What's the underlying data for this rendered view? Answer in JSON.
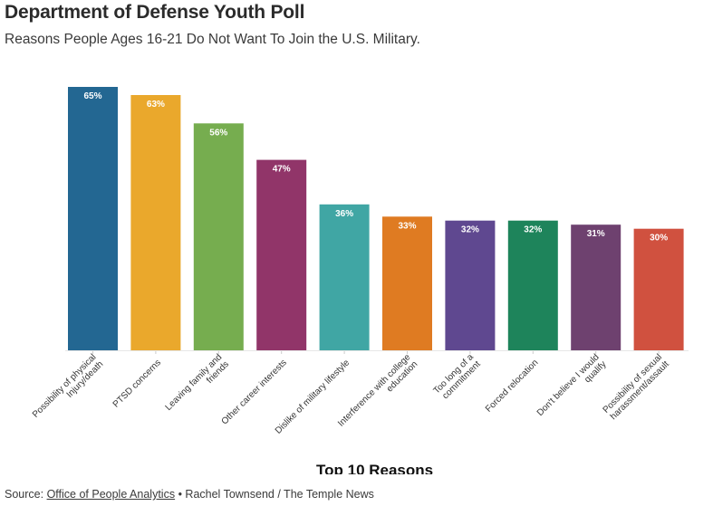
{
  "header": {
    "title": "Department of Defense Youth Poll",
    "subtitle": "Reasons People Ages 16-21 Do Not Want To Join the U.S. Military."
  },
  "footer": {
    "source_prefix": "Source: ",
    "source_link": "Office of People Analytics",
    "separator": " • ",
    "credit": "Rachel Townsend / The Temple News"
  },
  "chart_data": {
    "type": "bar",
    "title": "Department of Defense Youth Poll",
    "subtitle": "Reasons People Ages 16-21 Do Not Want To Join the U.S. Military.",
    "xlabel": "Top 10 Reasons",
    "ylabel": "",
    "ylim": [
      0,
      65
    ],
    "grid": false,
    "value_suffix": "%",
    "categories": [
      [
        "Possibility of physical",
        "Injury/death"
      ],
      [
        "PTSD concerns"
      ],
      [
        "Leaving family and",
        "friends"
      ],
      [
        "Other career interests"
      ],
      [
        "Dislike of military lifestyle"
      ],
      [
        "Interference with college",
        "education"
      ],
      [
        "Too long of a",
        "commitment"
      ],
      [
        "Forced relocation"
      ],
      [
        "Don't believe I would",
        "qualify"
      ],
      [
        "Possibility of sexual",
        "harassment/assault"
      ]
    ],
    "values": [
      65,
      63,
      56,
      47,
      36,
      33,
      32,
      32,
      31,
      30
    ],
    "colors": [
      "#236792",
      "#eaa82c",
      "#76ad4f",
      "#913569",
      "#40a6a4",
      "#df7b22",
      "#5f4890",
      "#1e845b",
      "#6e416f",
      "#d0513f"
    ]
  }
}
